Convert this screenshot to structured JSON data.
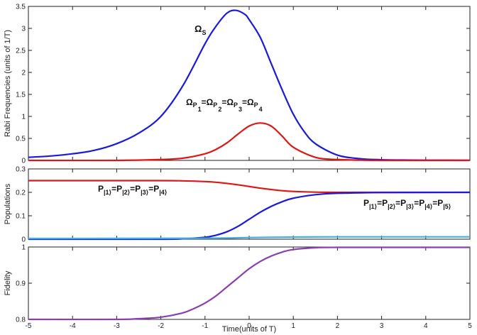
{
  "chart_data": [
    {
      "type": "line",
      "ylabel": "Rabi Frequencies (units of 1/T)",
      "xlim": [
        -5,
        5
      ],
      "ylim": [
        0,
        3.5
      ],
      "yticks": [
        "0",
        "0.5",
        "1",
        "1.5",
        "2",
        "2.5",
        "3",
        "3.5"
      ],
      "series": [
        {
          "name": "Ω_S",
          "color": "#1a1adb",
          "x": [
            -5,
            -4.5,
            -4,
            -3.5,
            -3,
            -2.5,
            -2,
            -1.5,
            -1,
            -0.75,
            -0.5,
            -0.3,
            -0.1,
            0,
            0.25,
            0.5,
            0.75,
            1,
            1.25,
            1.5,
            2,
            2.5,
            3,
            3.5,
            4,
            5
          ],
          "y": [
            0.07,
            0.1,
            0.15,
            0.23,
            0.38,
            0.62,
            1.0,
            1.7,
            2.65,
            3.05,
            3.35,
            3.41,
            3.32,
            3.2,
            2.8,
            2.2,
            1.6,
            1.05,
            0.65,
            0.38,
            0.12,
            0.04,
            0.015,
            0.008,
            0.005,
            0.003
          ]
        },
        {
          "name": "Ω_P1=Ω_P2=Ω_P3=Ω_P4",
          "color": "#e01616",
          "x": [
            -5,
            -3,
            -2,
            -1.5,
            -1,
            -0.75,
            -0.5,
            -0.25,
            0,
            0.25,
            0.5,
            0.75,
            1,
            1.5,
            2,
            3,
            5
          ],
          "y": [
            0.0,
            0.0,
            0.02,
            0.05,
            0.15,
            0.25,
            0.4,
            0.6,
            0.78,
            0.85,
            0.78,
            0.55,
            0.3,
            0.07,
            0.02,
            0.0,
            0.0
          ]
        }
      ],
      "annotations": {
        "omega_s": {
          "main": "Ω",
          "sub": "S"
        },
        "omega_p": [
          {
            "main": "Ω",
            "sub": "P",
            "subsub": "1"
          },
          {
            "main": "=Ω",
            "sub": "P",
            "subsub": "2"
          },
          {
            "main": "=Ω",
            "sub": "P",
            "subsub": "3"
          },
          {
            "main": "=Ω",
            "sub": "P",
            "subsub": "4"
          }
        ]
      }
    },
    {
      "type": "line",
      "ylabel": "Populations",
      "xlim": [
        -5,
        5
      ],
      "ylim": [
        0,
        0.3
      ],
      "yticks": [
        "0",
        "0.1",
        "0.2",
        "0.3"
      ],
      "series": [
        {
          "color": "#e01616",
          "x": [
            -5,
            -2,
            -1.5,
            -1,
            -0.75,
            -0.5,
            -0.25,
            0,
            0.25,
            0.5,
            0.75,
            1,
            1.5,
            2,
            3,
            5
          ],
          "y": [
            0.25,
            0.25,
            0.249,
            0.246,
            0.243,
            0.238,
            0.232,
            0.225,
            0.218,
            0.212,
            0.207,
            0.204,
            0.201,
            0.2,
            0.2,
            0.2
          ]
        },
        {
          "color": "#1a1adb",
          "x": [
            -5,
            -2,
            -1.5,
            -1,
            -0.75,
            -0.5,
            -0.25,
            0,
            0.25,
            0.5,
            0.75,
            1,
            1.5,
            2,
            3,
            5
          ],
          "y": [
            0.0,
            0.0,
            0.002,
            0.008,
            0.017,
            0.032,
            0.055,
            0.085,
            0.115,
            0.14,
            0.16,
            0.175,
            0.19,
            0.196,
            0.199,
            0.2
          ]
        },
        {
          "color": "#3fb0e0",
          "x": [
            -5,
            -1,
            0,
            1,
            2,
            5
          ],
          "y": [
            0.003,
            0.004,
            0.007,
            0.009,
            0.01,
            0.01
          ]
        }
      ],
      "annotations": {
        "p_left": [
          "1",
          "2",
          "3",
          "4"
        ],
        "p_right": [
          "1",
          "2",
          "3",
          "4",
          "5"
        ]
      }
    },
    {
      "type": "line",
      "ylabel": "Fidelity",
      "xlabel": "Time(units of T)",
      "xlim": [
        -5,
        5
      ],
      "ylim": [
        0.8,
        1
      ],
      "yticks": [
        "0.8",
        "0.9",
        "1"
      ],
      "xticks": [
        "-5",
        "-4",
        "-3",
        "-2",
        "-1",
        "0",
        "1",
        "2",
        "3",
        "4",
        "5"
      ],
      "series": [
        {
          "color": "#8a3fb0",
          "x": [
            -5,
            -3,
            -2.5,
            -2,
            -1.5,
            -1.25,
            -1,
            -0.75,
            -0.5,
            -0.25,
            0,
            0.25,
            0.5,
            0.75,
            1,
            1.5,
            2,
            3,
            5
          ],
          "y": [
            0.8,
            0.8,
            0.802,
            0.806,
            0.818,
            0.83,
            0.845,
            0.865,
            0.89,
            0.915,
            0.94,
            0.96,
            0.975,
            0.986,
            0.993,
            0.998,
            0.999,
            0.999,
            0.999
          ]
        }
      ]
    }
  ]
}
